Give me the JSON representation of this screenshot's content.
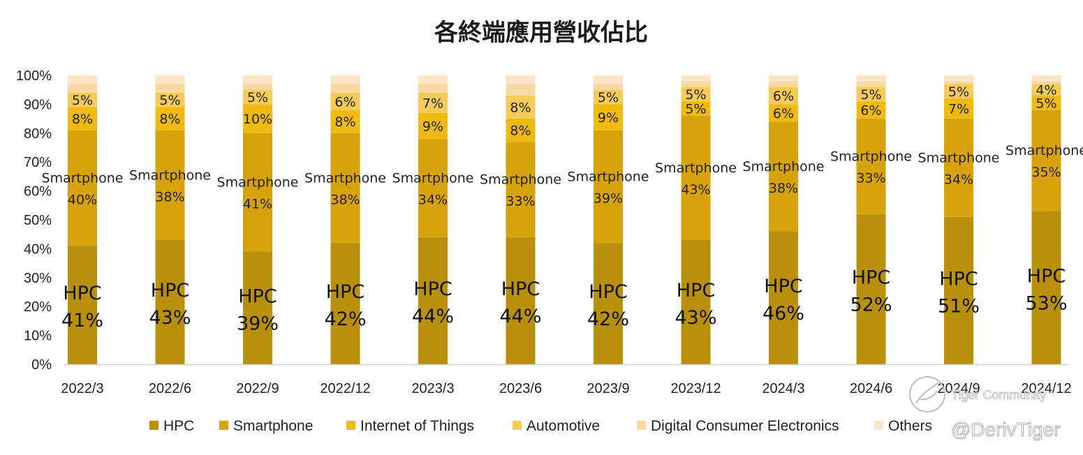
{
  "chart_data": {
    "type": "bar",
    "stacked": true,
    "percent_stacked": true,
    "title": "各終端應用營收佔比",
    "xlabel": "",
    "ylabel": "",
    "ylim": [
      0,
      100
    ],
    "y_ticks": [
      "0%",
      "10%",
      "20%",
      "30%",
      "40%",
      "50%",
      "60%",
      "70%",
      "80%",
      "90%",
      "100%"
    ],
    "categories": [
      "2022/3",
      "2022/6",
      "2022/9",
      "2022/12",
      "2023/3",
      "2023/6",
      "2023/9",
      "2023/12",
      "2024/3",
      "2024/6",
      "2024/9",
      "2024/12"
    ],
    "series": [
      {
        "name": "HPC",
        "color": "#b8900a",
        "values": [
          41,
          43,
          39,
          42,
          44,
          44,
          42,
          43,
          46,
          52,
          51,
          53
        ]
      },
      {
        "name": "Smartphone",
        "color": "#d7a20a",
        "values": [
          40,
          38,
          41,
          38,
          34,
          33,
          39,
          43,
          38,
          33,
          34,
          35
        ]
      },
      {
        "name": "Internet of Things",
        "color": "#f0ba10",
        "values": [
          8,
          8,
          10,
          8,
          9,
          8,
          9,
          5,
          6,
          6,
          7,
          5
        ]
      },
      {
        "name": "Automotive",
        "color": "#f6cb58",
        "values": [
          5,
          5,
          5,
          6,
          7,
          8,
          5,
          5,
          6,
          5,
          5,
          4
        ]
      },
      {
        "name": "Digital Consumer Electronics",
        "color": "#f9d9a3",
        "values": [
          3,
          3,
          2,
          3,
          3,
          4,
          2,
          2,
          2,
          2,
          1,
          1
        ]
      },
      {
        "name": "Others",
        "color": "#fde4c6",
        "values": [
          3,
          3,
          3,
          3,
          3,
          3,
          3,
          2,
          2,
          2,
          2,
          2
        ]
      }
    ],
    "labels": {
      "hpc_text": "HPC",
      "smartphone_text": "Smartphone",
      "hpc": [
        "41%",
        "43%",
        "39%",
        "42%",
        "44%",
        "44%",
        "42%",
        "43%",
        "46%",
        "52%",
        "51%",
        "53%"
      ],
      "smartphone": [
        "40%",
        "38%",
        "41%",
        "38%",
        "34%",
        "33%",
        "39%",
        "43%",
        "38%",
        "33%",
        "34%",
        "35%"
      ],
      "iot": [
        "8%",
        "8%",
        "10%",
        "8%",
        "9%",
        "8%",
        "9%",
        "5%",
        "6%",
        "6%",
        "7%",
        "5%"
      ],
      "automotive": [
        "5%",
        "5%",
        "5%",
        "6%",
        "7%",
        "8%",
        "5%",
        "5%",
        "6%",
        "5%",
        "5%",
        "4%"
      ]
    },
    "legend_position": "bottom",
    "grid": false
  },
  "watermark": {
    "community": "Tiger Community",
    "handle": "@DerivTiger"
  }
}
